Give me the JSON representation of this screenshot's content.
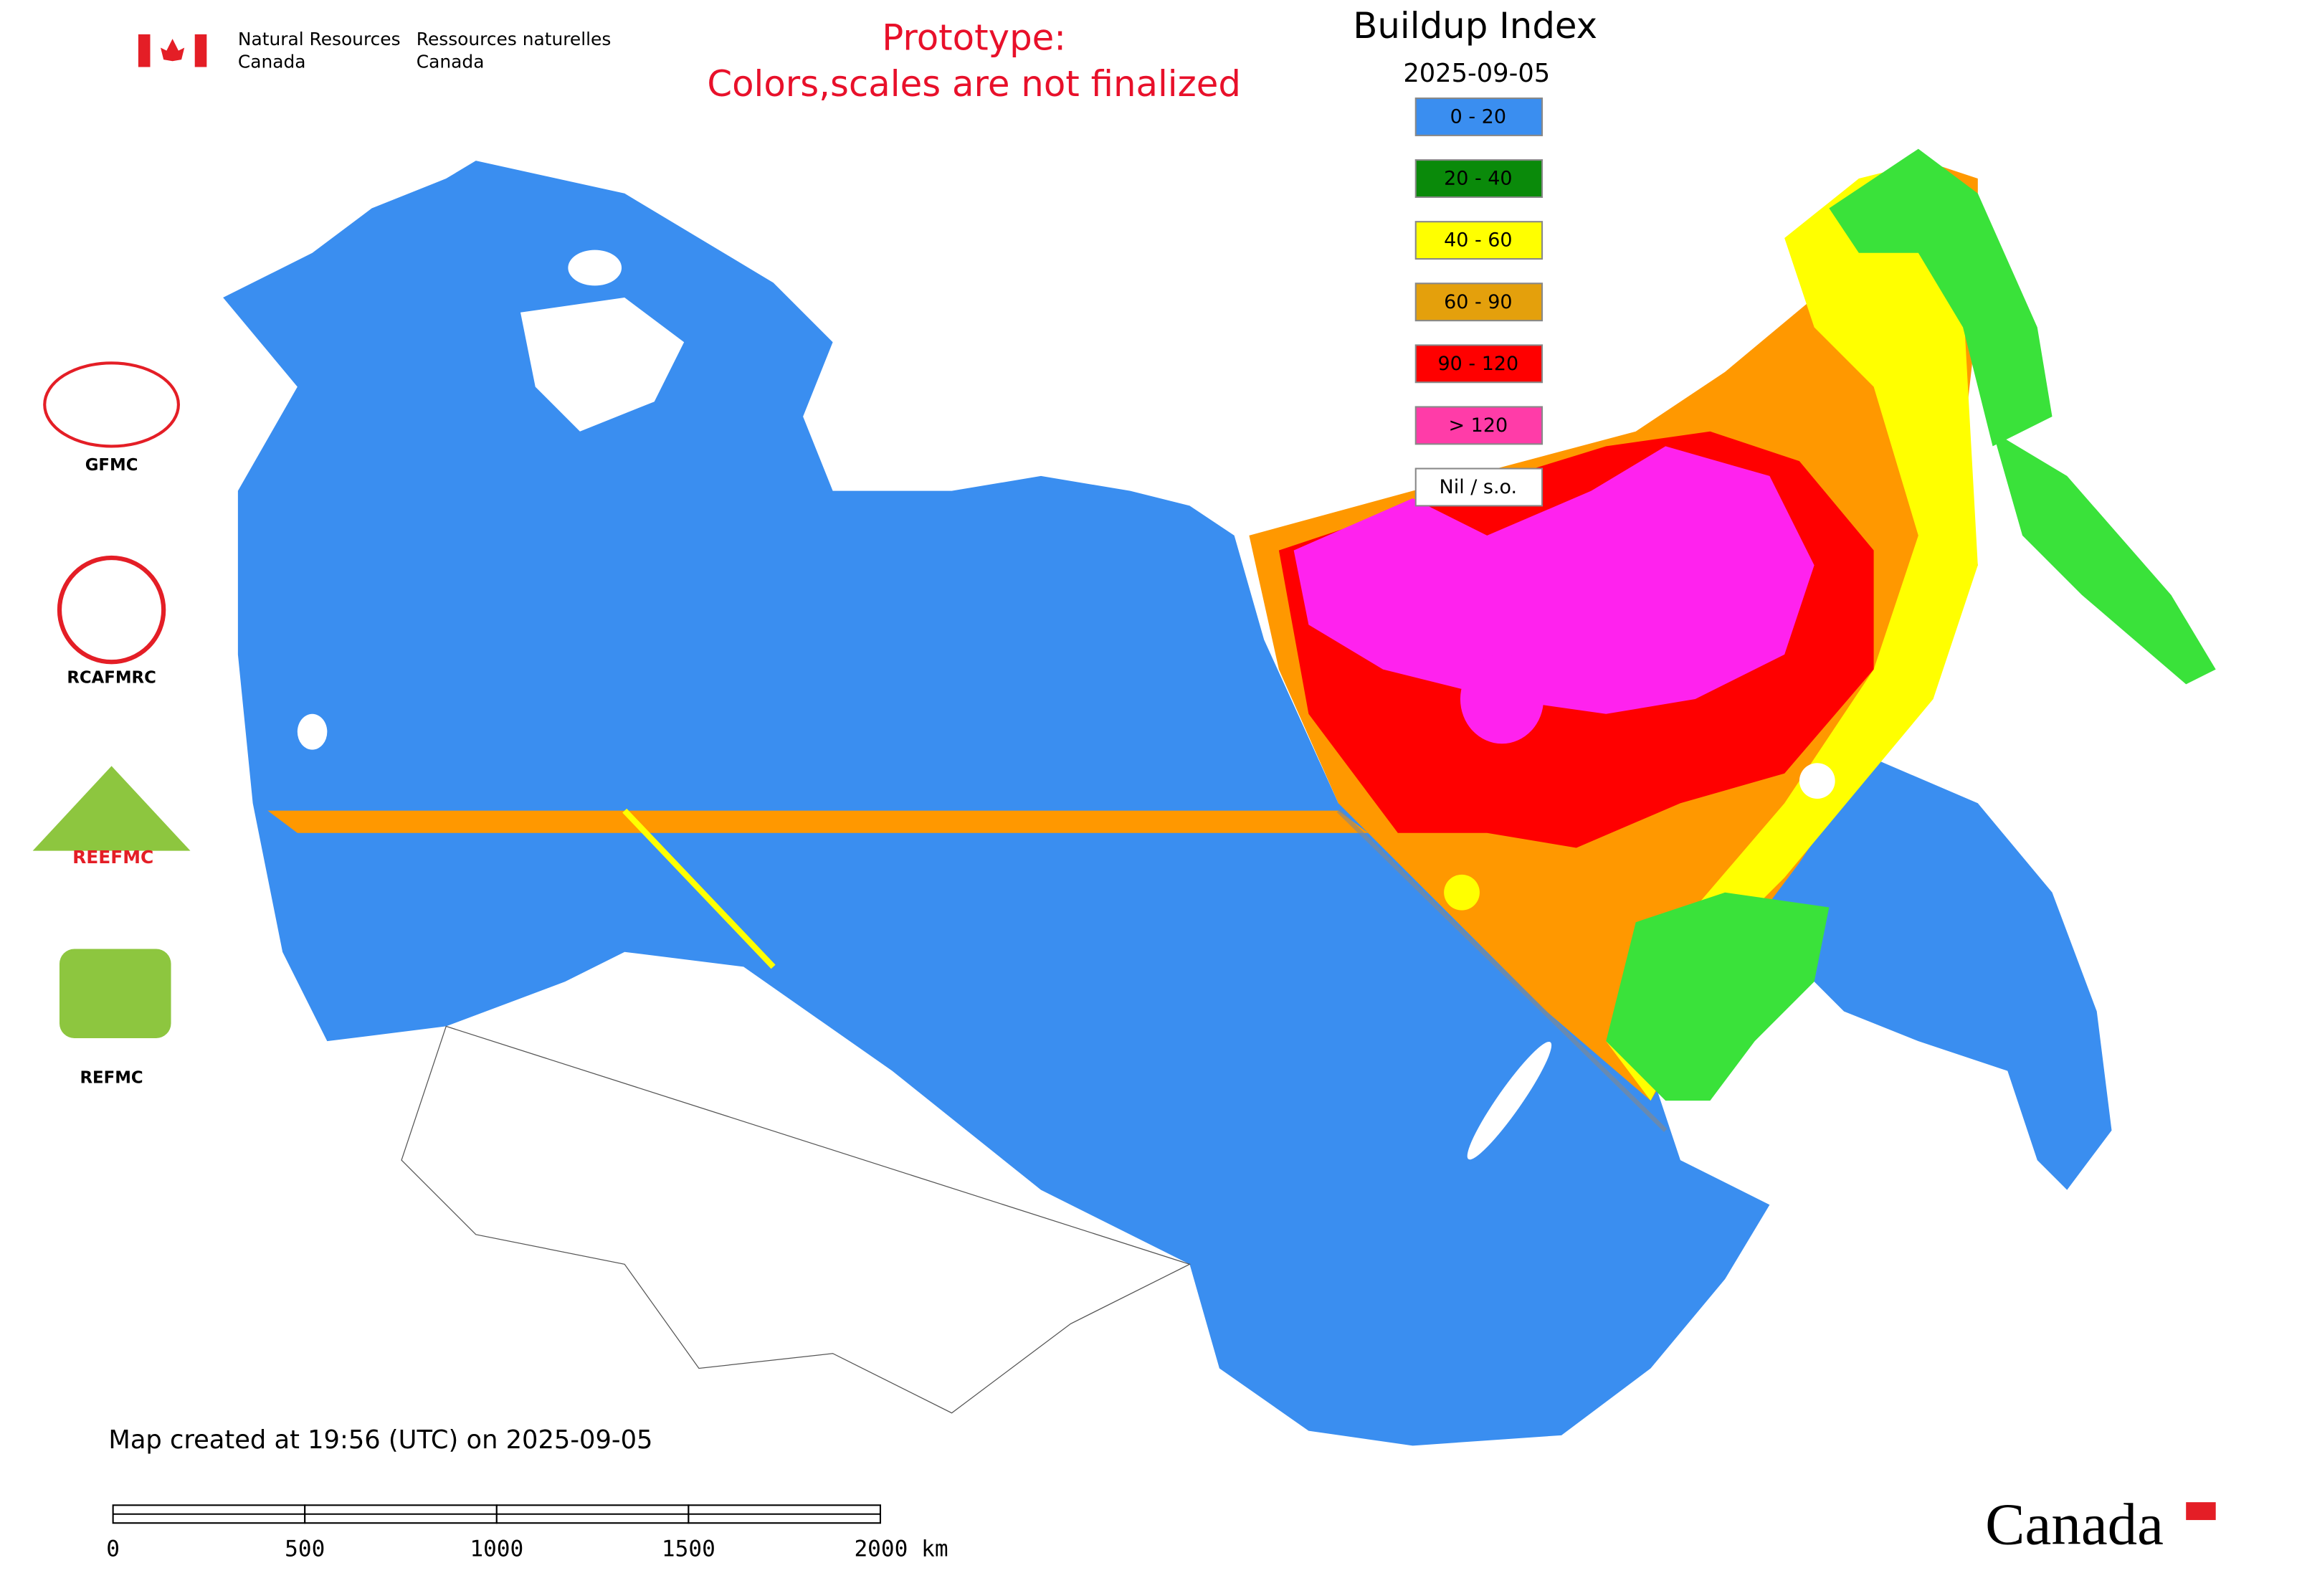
{
  "header": {
    "agency_en": [
      "Natural Resources",
      "Canada"
    ],
    "agency_fr": [
      "Ressources naturelles",
      "Canada"
    ],
    "notice": [
      "Prototype:",
      "Colors,scales are not finalized"
    ]
  },
  "legend": {
    "title": "Buildup Index",
    "date": "2025-09-05",
    "items": [
      {
        "label": "0 - 20",
        "color": "#3a8ef0"
      },
      {
        "label": "20 - 40",
        "color": "#0a8a0a"
      },
      {
        "label": "40 - 60",
        "color": "#ffff00"
      },
      {
        "label": "60 - 90",
        "color": "#e4a00c"
      },
      {
        "label": "90 - 120",
        "color": "#ff0000"
      },
      {
        "label": "> 120",
        "color": "#ff3ca8"
      },
      {
        "label": "Nil / s.o.",
        "color": "#ffffff"
      }
    ]
  },
  "logos": [
    "GFMC",
    "RCAFMRC",
    "REEFMC",
    "REFMC"
  ],
  "footer": {
    "created": "Map created at 19:56 (UTC) on 2025-09-05",
    "wordmark": "Canada"
  },
  "scale_bar": {
    "ticks": [
      "0",
      "500",
      "1000",
      "1500",
      "2000 km"
    ]
  }
}
